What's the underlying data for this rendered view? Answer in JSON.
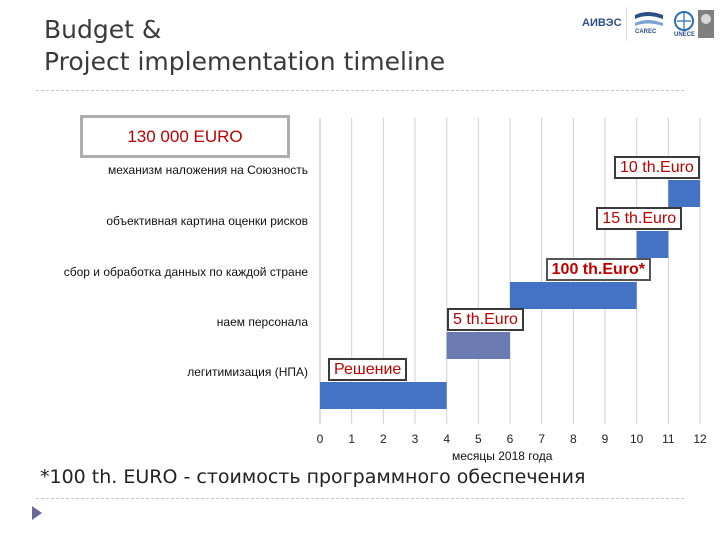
{
  "slide": {
    "title_lines": [
      "Budget &",
      "Project implementation timeline"
    ],
    "budget_label": "130 000 EURO",
    "footnote": "*100 th. EURO - стоимость программного обеспечения",
    "logos": [
      "АИВЭС",
      "CAREC",
      "UNECE"
    ]
  },
  "chart_data": {
    "type": "bar",
    "orientation": "horizontal-gantt",
    "xlabel": "месяцы 2018 года",
    "xlim": [
      0,
      12
    ],
    "x_ticks": [
      "0",
      "1",
      "2",
      "3",
      "4",
      "5",
      "6",
      "7",
      "8",
      "9",
      "10",
      "11",
      "12"
    ],
    "grid": "vertical",
    "tasks": [
      {
        "name": "механизм наложения на Союзность",
        "start": 11.0,
        "end": 12.0,
        "color": "#4472c4",
        "label": "10 th.Euro",
        "label_bold": false
      },
      {
        "name": "объективная картина оценки рисков",
        "start": 10.0,
        "end": 11.0,
        "color": "#4472c4",
        "label": "15 th.Euro",
        "label_bold": false
      },
      {
        "name": "сбор и обработка данных по каждой стране",
        "start": 6.0,
        "end": 10.0,
        "color": "#4472c4",
        "label": "100 th.Euro*",
        "label_bold": true
      },
      {
        "name": "наем персонала",
        "start": 4.0,
        "end": 6.0,
        "color": "#6b7ab0",
        "label": "5 th.Euro",
        "label_bold": false
      },
      {
        "name": "легитимизация (НПА)",
        "start": 0.0,
        "end": 4.0,
        "color": "#4472c4",
        "label": "Решение",
        "label_bold": false
      }
    ]
  }
}
